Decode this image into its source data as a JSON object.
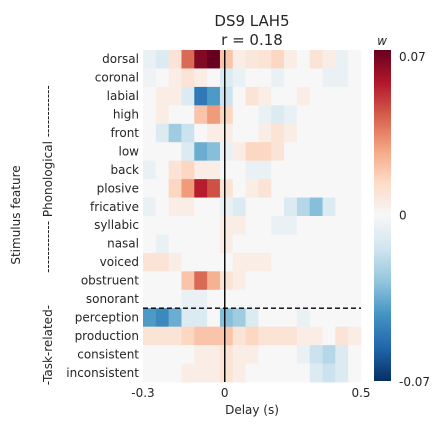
{
  "chart_data": {
    "type": "heatmap",
    "title": "DS9 LAH5",
    "subtitle": "r = 0.18",
    "xlabel": "Delay (s)",
    "ylabel": "Stimulus feature",
    "group_labels": [
      {
        "label": "------------ Phonological ------------",
        "rows": [
          0,
          13
        ]
      },
      {
        "label": "-Task-related-",
        "rows": [
          14,
          17
        ]
      }
    ],
    "x_ticks": [
      {
        "value": -0.3,
        "label": "-0.3"
      },
      {
        "value": 0,
        "label": "0"
      },
      {
        "value": 0.5,
        "label": "0.5"
      }
    ],
    "xlim": [
      -0.3,
      0.5
    ],
    "rows": [
      "dorsal",
      "coronal",
      "labial",
      "high",
      "front",
      "low",
      "back",
      "plosive",
      "fricative",
      "syllabic",
      "nasal",
      "voiced",
      "obstruent",
      "sonorant",
      "perception",
      "production",
      "consistent",
      "inconsistent"
    ],
    "group_divider_after_row": 13,
    "onset_line_x": 0,
    "colorbar": {
      "label": "w",
      "min": -0.07,
      "max": 0.07,
      "ticks": [
        {
          "value": 0.07,
          "label": "0.07"
        },
        {
          "value": 0,
          "label": "0"
        },
        {
          "value": -0.07,
          "label": "-0.07"
        }
      ],
      "colormap": "RdBu_r"
    },
    "x_samples": [
      -0.3,
      -0.25,
      -0.2,
      -0.15,
      -0.1,
      -0.05,
      0.0,
      0.05,
      0.1,
      0.15,
      0.2,
      0.25,
      0.3,
      0.35,
      0.4,
      0.45,
      0.5
    ],
    "values": [
      [
        -0.005,
        -0.01,
        0.01,
        0.04,
        0.065,
        0.07,
        0.02,
        0.005,
        0.008,
        0.01,
        0.015,
        0.005,
        0.0,
        0.01,
        0.005,
        -0.005,
        0.0
      ],
      [
        -0.003,
        0.0,
        0.005,
        0.01,
        0.005,
        0.0,
        -0.01,
        -0.005,
        0.0,
        0.0,
        -0.005,
        0.0,
        0.0,
        0.0,
        -0.005,
        -0.005,
        0.0
      ],
      [
        0.0,
        0.005,
        0.005,
        -0.01,
        -0.05,
        -0.04,
        -0.015,
        0.0,
        0.01,
        0.005,
        0.0,
        0.0,
        0.005,
        0.0,
        0.0,
        0.0,
        0.0
      ],
      [
        0.0,
        0.005,
        0.0,
        0.0,
        0.02,
        0.03,
        0.015,
        0.0,
        0.0,
        -0.005,
        -0.01,
        -0.005,
        0.0,
        0.0,
        0.0,
        0.0,
        0.0
      ],
      [
        0.0,
        -0.01,
        -0.025,
        -0.015,
        0.0,
        0.005,
        0.005,
        0.0,
        0.0,
        0.005,
        0.01,
        0.005,
        0.0,
        0.0,
        0.0,
        0.0,
        0.0
      ],
      [
        0.0,
        0.0,
        0.0,
        -0.01,
        -0.035,
        -0.03,
        -0.005,
        0.005,
        0.015,
        0.015,
        0.01,
        0.0,
        0.0,
        0.0,
        0.0,
        0.0,
        0.0
      ],
      [
        -0.005,
        0.0,
        0.01,
        0.015,
        0.005,
        0.005,
        0.0,
        0.0,
        -0.005,
        -0.005,
        0.0,
        0.0,
        0.0,
        0.0,
        0.0,
        0.0,
        0.0
      ],
      [
        0.0,
        0.0,
        0.015,
        0.03,
        0.055,
        0.045,
        0.01,
        0.0,
        0.005,
        0.01,
        0.0,
        0.0,
        0.0,
        0.0,
        0.0,
        0.0,
        0.0
      ],
      [
        -0.005,
        0.0,
        0.005,
        0.005,
        0.0,
        0.0,
        -0.005,
        -0.01,
        0.0,
        0.0,
        0.0,
        -0.01,
        -0.02,
        -0.03,
        -0.01,
        0.0,
        0.0
      ],
      [
        0.0,
        0.0,
        0.0,
        0.0,
        0.0,
        0.0,
        0.005,
        0.005,
        0.0,
        0.0,
        -0.005,
        -0.005,
        0.0,
        0.0,
        0.0,
        0.0,
        0.0
      ],
      [
        0.0,
        -0.005,
        0.0,
        0.0,
        0.0,
        0.0,
        0.005,
        0.0,
        0.0,
        0.0,
        0.0,
        0.0,
        0.0,
        0.0,
        0.0,
        0.0,
        0.0
      ],
      [
        0.01,
        0.01,
        0.005,
        0.0,
        0.0,
        0.0,
        0.0,
        0.005,
        0.005,
        0.005,
        0.0,
        0.0,
        0.0,
        0.0,
        0.0,
        0.0,
        0.0
      ],
      [
        0.0,
        0.0,
        0.0,
        0.02,
        0.04,
        0.025,
        0.01,
        0.005,
        0.0,
        0.0,
        0.0,
        0.0,
        0.0,
        0.0,
        0.0,
        0.0,
        0.0
      ],
      [
        0.0,
        0.0,
        0.0,
        -0.005,
        -0.005,
        0.0,
        0.0,
        0.0,
        0.0,
        0.0,
        0.0,
        0.0,
        0.0,
        0.0,
        0.0,
        0.0,
        0.0
      ],
      [
        -0.04,
        -0.045,
        -0.035,
        -0.01,
        -0.01,
        0.0,
        -0.03,
        -0.025,
        -0.01,
        0.0,
        0.0,
        0.0,
        -0.005,
        0.0,
        0.0,
        0.0,
        0.0
      ],
      [
        0.01,
        0.01,
        0.01,
        0.015,
        0.02,
        0.02,
        0.02,
        0.01,
        0.015,
        0.01,
        0.01,
        0.01,
        0.005,
        0.005,
        0.0,
        0.01,
        0.005
      ],
      [
        0.0,
        0.0,
        0.0,
        0.0,
        0.005,
        0.005,
        0.01,
        0.005,
        0.005,
        0.0,
        0.0,
        0.0,
        -0.005,
        -0.015,
        -0.02,
        -0.01,
        0.0
      ],
      [
        0.0,
        0.0,
        0.0,
        0.005,
        0.005,
        0.005,
        0.01,
        0.005,
        0.0,
        0.0,
        0.0,
        0.0,
        0.0,
        -0.01,
        -0.015,
        -0.01,
        0.0
      ]
    ]
  }
}
